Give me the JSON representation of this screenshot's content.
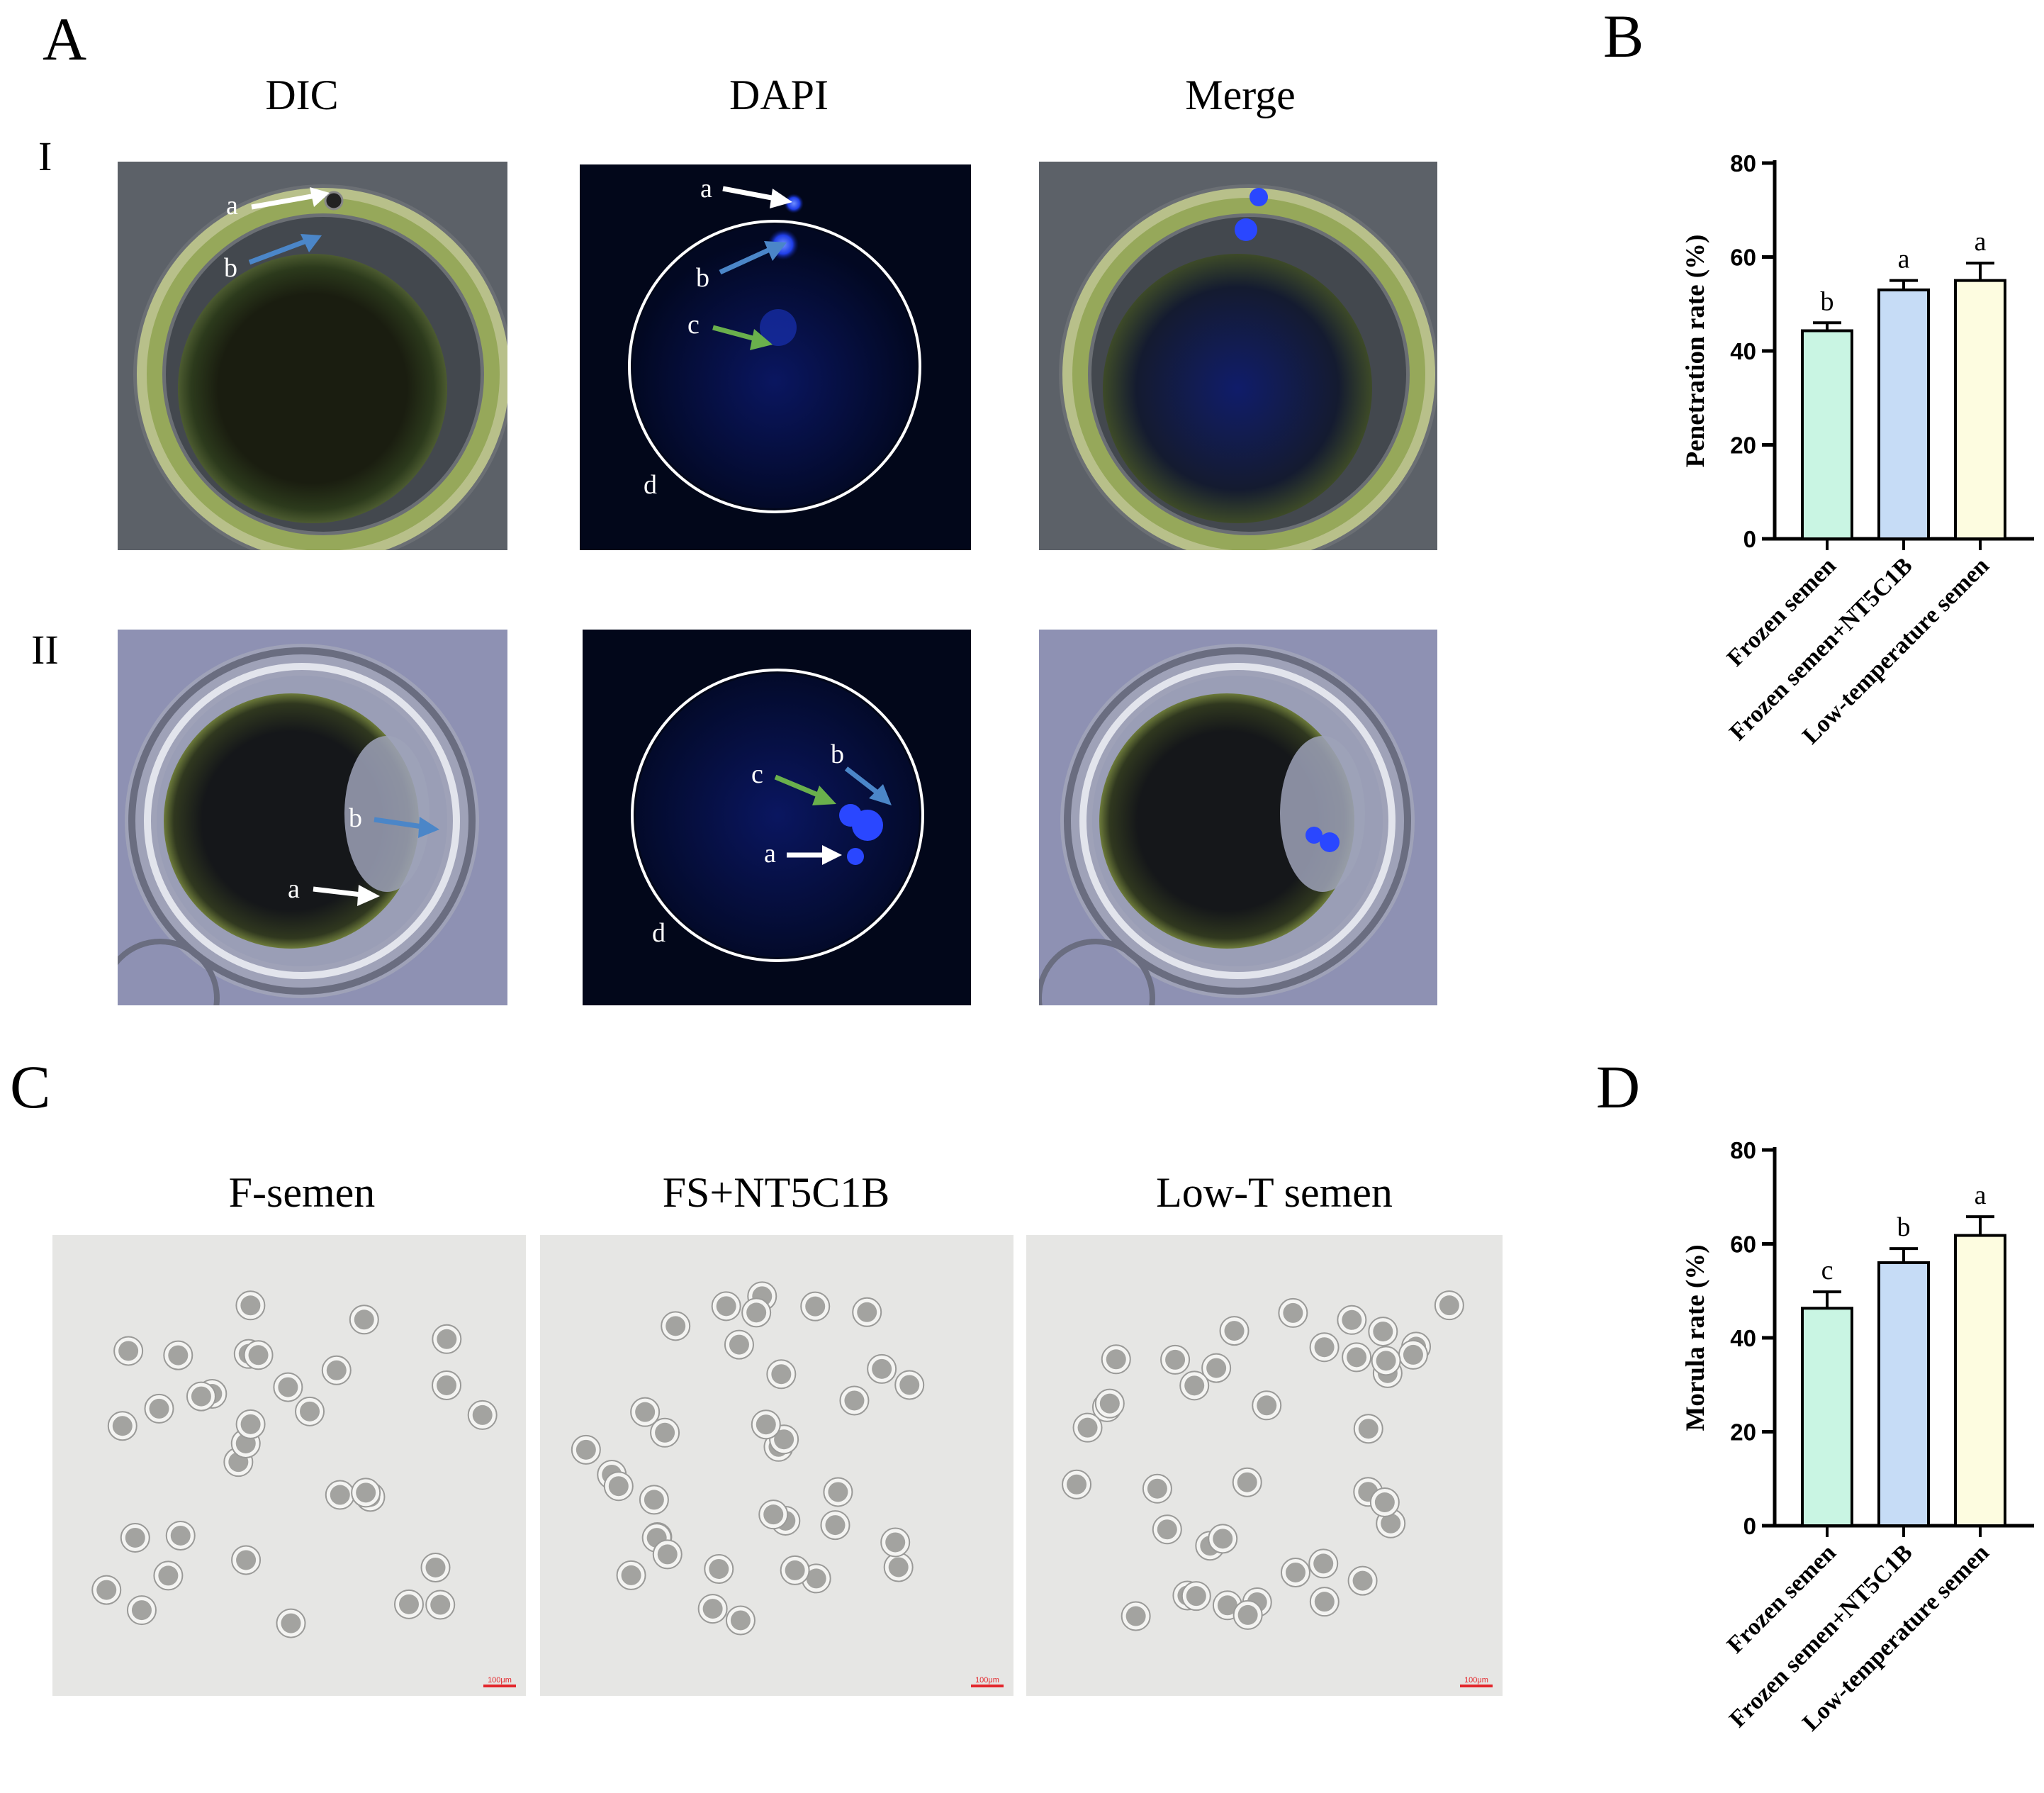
{
  "panel_labels": {
    "A": "A",
    "B": "B",
    "C": "C",
    "D": "D"
  },
  "panel_a": {
    "columns": [
      "DIC",
      "DAPI",
      "Merge"
    ],
    "rows": [
      "I",
      "II"
    ],
    "annotations": {
      "a": "a",
      "b": "b",
      "c": "c",
      "d": "d"
    }
  },
  "panel_c": {
    "columns": [
      "F-semen",
      "FS+NT5C1B",
      "Low-T semen"
    ],
    "scale_bar": "100μm"
  },
  "colors": {
    "frozen": "#c9f5e3",
    "frozen_nt5c1b": "#c6dcf6",
    "low_temp": "#fdfce0",
    "arrow_white": "#ffffff",
    "arrow_blue": "#4b86c8",
    "arrow_green": "#6ab04c",
    "scale_bar": "#e3262b"
  },
  "chart_data": [
    {
      "type": "bar",
      "categories": [
        "Frozen semen",
        "Frozen semen+NT5C1B",
        "Low-temperature semen"
      ],
      "values": [
        44.3,
        53.0,
        55.0
      ],
      "errors": [
        1.7,
        2.0,
        3.7
      ],
      "significance": [
        "b",
        "a",
        "a"
      ],
      "ylabel": "Penetration rate (%)",
      "ylim": [
        0,
        80
      ],
      "yticks": [
        0,
        20,
        40,
        60,
        80
      ]
    },
    {
      "type": "bar",
      "categories": [
        "Frozen semen",
        "Frozen semen+NT5C1B",
        "Low-temperature semen"
      ],
      "values": [
        46.3,
        56.0,
        61.8
      ],
      "errors": [
        3.5,
        3.0,
        4.0
      ],
      "significance": [
        "c",
        "b",
        "a"
      ],
      "ylabel": "Morula rate (%)",
      "ylim": [
        0,
        80
      ],
      "yticks": [
        0,
        20,
        40,
        60,
        80
      ]
    }
  ]
}
